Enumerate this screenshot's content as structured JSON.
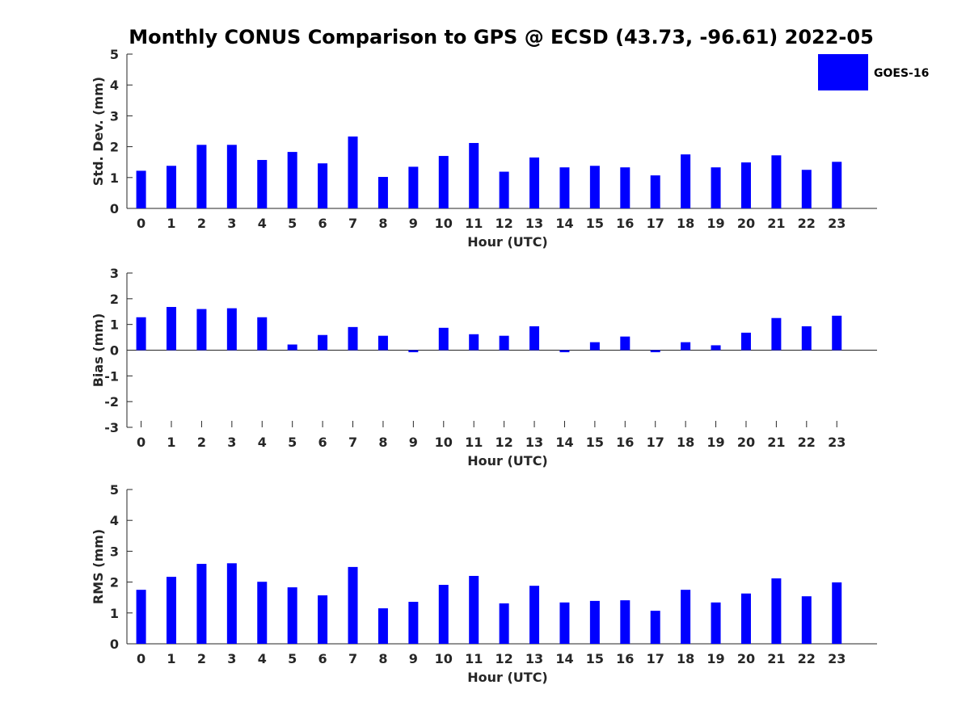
{
  "title": "Monthly CONUS Comparison to GPS @ ECSD (43.73, -96.61) 2022-05",
  "legend": {
    "label": "GOES-16",
    "color": "#0000ff",
    "placement": "top-right"
  },
  "bar_color": "#0000ff",
  "chart_data": [
    {
      "type": "bar",
      "id": "std",
      "ylabel": "Std. Dev. (mm)",
      "xlabel": "Hour (UTC)",
      "ylim": [
        0,
        5
      ],
      "yticks": [
        "0",
        "1",
        "2",
        "3",
        "4",
        "5"
      ],
      "categories": [
        "0",
        "1",
        "2",
        "3",
        "4",
        "5",
        "6",
        "7",
        "8",
        "9",
        "10",
        "11",
        "12",
        "13",
        "14",
        "15",
        "16",
        "17",
        "18",
        "19",
        "20",
        "21",
        "22",
        "23"
      ],
      "series": [
        {
          "name": "GOES-16",
          "values": [
            1.22,
            1.38,
            2.06,
            2.06,
            1.57,
            1.83,
            1.46,
            2.33,
            1.02,
            1.35,
            1.7,
            2.12,
            1.19,
            1.65,
            1.33,
            1.38,
            1.33,
            1.07,
            1.75,
            1.33,
            1.49,
            1.72,
            1.25,
            1.51
          ]
        }
      ]
    },
    {
      "type": "bar",
      "id": "bias",
      "ylabel": "Bias (mm)",
      "xlabel": "Hour (UTC)",
      "ylim": [
        -3,
        3
      ],
      "yticks": [
        "-3",
        "-2",
        "-1",
        "0",
        "1",
        "2",
        "3"
      ],
      "categories": [
        "0",
        "1",
        "2",
        "3",
        "4",
        "5",
        "6",
        "7",
        "8",
        "9",
        "10",
        "11",
        "12",
        "13",
        "14",
        "15",
        "16",
        "17",
        "18",
        "19",
        "20",
        "21",
        "22",
        "23"
      ],
      "series": [
        {
          "name": "GOES-16",
          "values": [
            1.28,
            1.68,
            1.6,
            1.63,
            1.28,
            0.22,
            0.59,
            0.9,
            0.56,
            -0.08,
            0.87,
            0.62,
            0.56,
            0.93,
            -0.08,
            0.31,
            0.53,
            -0.08,
            0.31,
            0.19,
            0.68,
            1.25,
            0.93,
            1.34
          ]
        }
      ]
    },
    {
      "type": "bar",
      "id": "rms",
      "ylabel": "RMS (mm)",
      "xlabel": "Hour (UTC)",
      "ylim": [
        0,
        5
      ],
      "yticks": [
        "0",
        "1",
        "2",
        "3",
        "4",
        "5"
      ],
      "categories": [
        "0",
        "1",
        "2",
        "3",
        "4",
        "5",
        "6",
        "7",
        "8",
        "9",
        "10",
        "11",
        "12",
        "13",
        "14",
        "15",
        "16",
        "17",
        "18",
        "19",
        "20",
        "21",
        "22",
        "23"
      ],
      "series": [
        {
          "name": "GOES-16",
          "values": [
            1.75,
            2.17,
            2.59,
            2.61,
            2.01,
            1.83,
            1.57,
            2.49,
            1.15,
            1.36,
            1.91,
            2.2,
            1.31,
            1.88,
            1.34,
            1.39,
            1.41,
            1.07,
            1.75,
            1.34,
            1.63,
            2.12,
            1.54,
            1.99
          ]
        }
      ]
    }
  ]
}
